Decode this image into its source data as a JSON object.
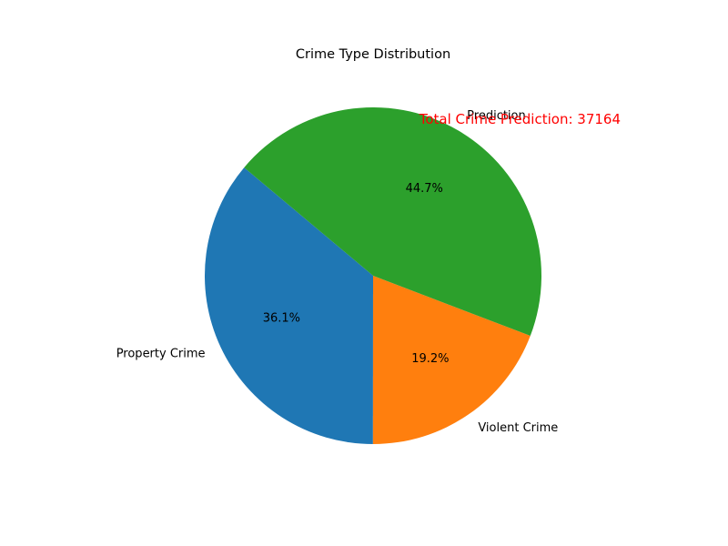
{
  "chart_data": {
    "type": "pie",
    "title": "Crime Type Distribution",
    "categories": [
      "Property Crime",
      "Violent Crime",
      "Prediction"
    ],
    "values": [
      36.1,
      19.2,
      44.7
    ],
    "value_labels": [
      "36.1%",
      "19.2%",
      "44.7%"
    ],
    "colors": [
      "#1f77b4",
      "#ff7f0e",
      "#2ca02c"
    ],
    "start_angle_deg": 140,
    "direction": "counterclockwise",
    "annotation": {
      "text": "Total Crime Prediction: 37164",
      "color": "#ff0000"
    }
  }
}
